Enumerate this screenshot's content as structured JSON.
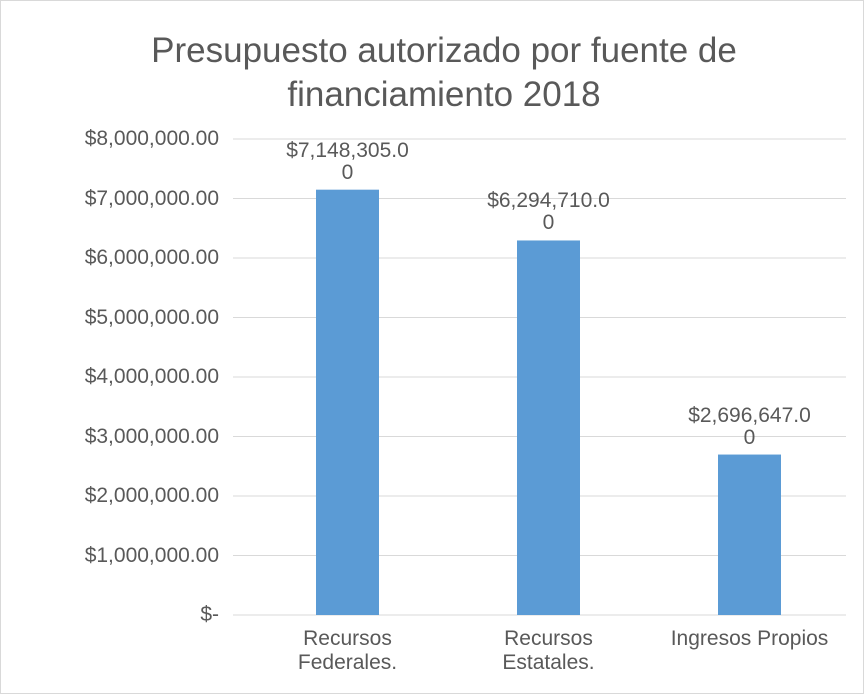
{
  "chart_data": {
    "type": "bar",
    "title": "Presupuesto autorizado por fuente de financiamiento 2018",
    "categories": [
      "Recursos Federales.",
      "Recursos Estatales.",
      "Ingresos Propios"
    ],
    "values": [
      7148305,
      6294710,
      2696647
    ],
    "value_labels": [
      "$7,148,305.00",
      "$6,294,710.00",
      "$2,696,647.00"
    ],
    "color": "#5b9bd5",
    "ylim": [
      0,
      8000000
    ],
    "yticks": [
      {
        "value": 0,
        "label": "$-"
      },
      {
        "value": 1000000,
        "label": "$1,000,000.00"
      },
      {
        "value": 2000000,
        "label": "$2,000,000.00"
      },
      {
        "value": 3000000,
        "label": "$3,000,000.00"
      },
      {
        "value": 4000000,
        "label": "$4,000,000.00"
      },
      {
        "value": 5000000,
        "label": "$5,000,000.00"
      },
      {
        "value": 6000000,
        "label": "$6,000,000.00"
      },
      {
        "value": 7000000,
        "label": "$7,000,000.00"
      },
      {
        "value": 8000000,
        "label": "$8,000,000.00"
      }
    ],
    "grid": true
  }
}
